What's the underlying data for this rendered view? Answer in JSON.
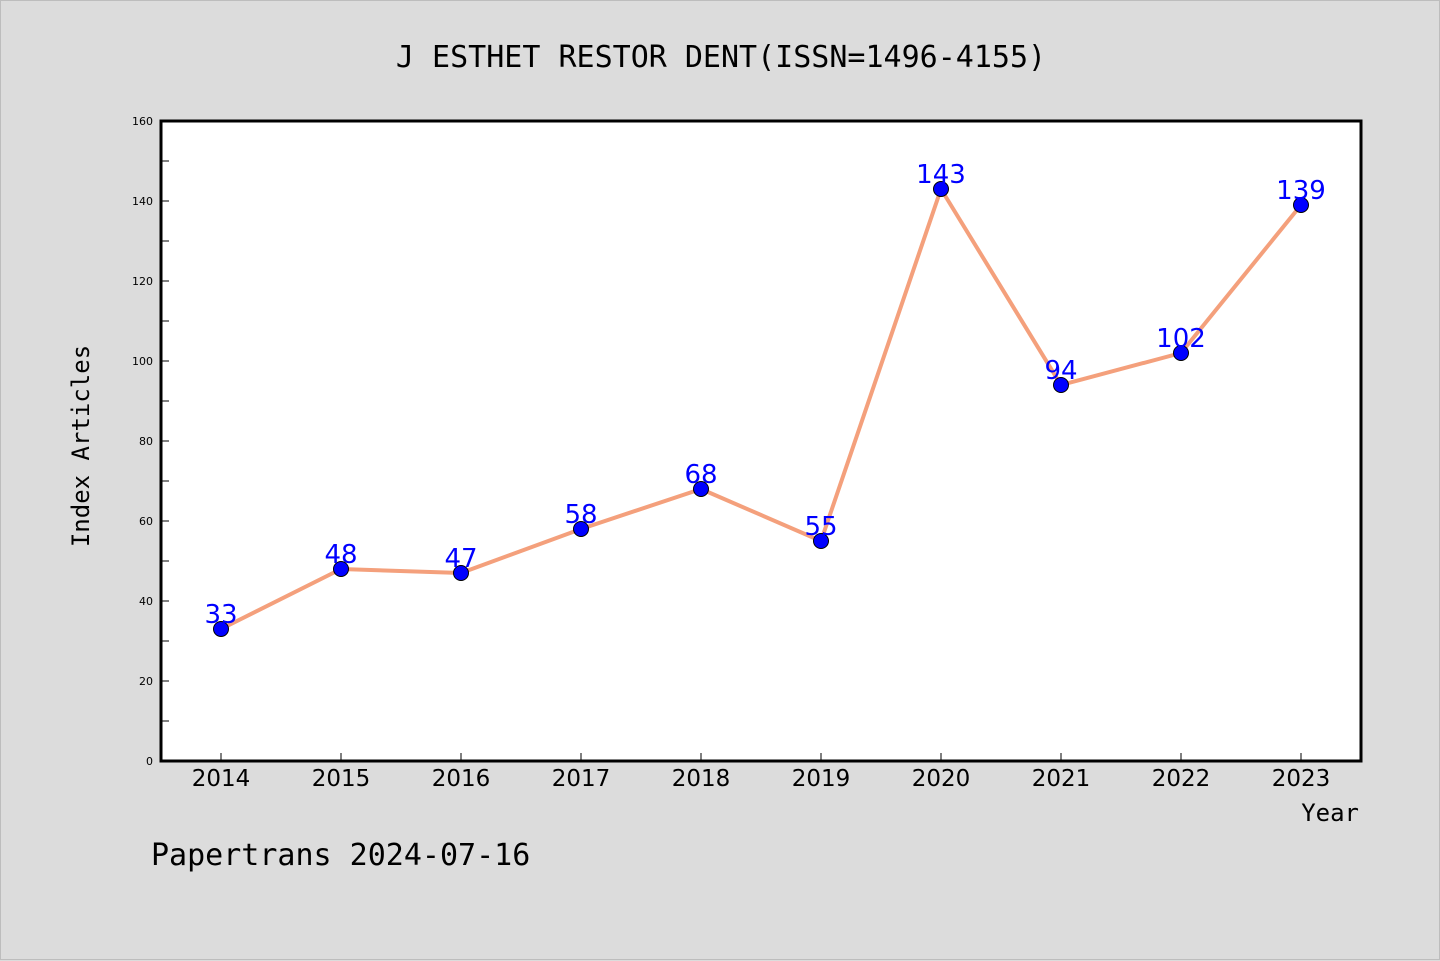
{
  "footer": "Papertrans 2024-07-16",
  "chart_data": {
    "type": "line",
    "title": "J ESTHET RESTOR DENT(ISSN=1496-4155)",
    "xlabel": "Year",
    "ylabel": "Index Articles",
    "categories": [
      "2014",
      "2015",
      "2016",
      "2017",
      "2018",
      "2019",
      "2020",
      "2021",
      "2022",
      "2023"
    ],
    "values": [
      33,
      48,
      47,
      58,
      68,
      55,
      143,
      94,
      102,
      139
    ],
    "ylim": [
      0,
      160
    ],
    "yticks": [
      0,
      20,
      40,
      60,
      80,
      100,
      120,
      140,
      160
    ],
    "grid": false,
    "line_color": "#f4a07c",
    "marker_color": "#0000ff",
    "label_color": "#0000ff",
    "plot_background": "#ffffff",
    "page_background": "#dcdcdc"
  }
}
